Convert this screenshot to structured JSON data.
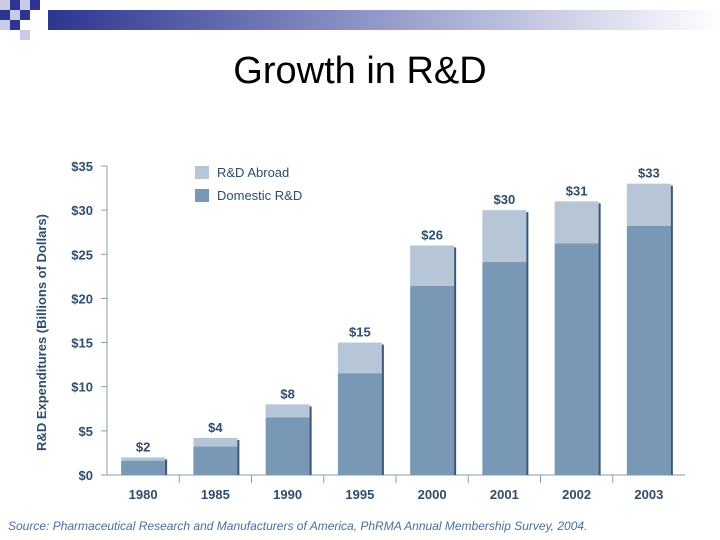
{
  "slide": {
    "title": "Growth in R&D",
    "source": "Source: Pharmaceutical Research and Manufacturers of America, PhRMA Annual Membership Survey, 2004."
  },
  "colors": {
    "abroad": "#b7c6d6",
    "domestic": "#7898b5",
    "label": "#2e4d6e",
    "deco_dark": "#2d3590",
    "deco_light": "#c7cbe6"
  },
  "chart_data": {
    "type": "bar",
    "stacked": true,
    "title": "",
    "xlabel": "",
    "ylabel": "R&D Expenditures (Billions of Dollars)",
    "ylim": [
      0,
      35
    ],
    "yticks": [
      0,
      5,
      10,
      15,
      20,
      25,
      30,
      35
    ],
    "ytick_labels": [
      "$0",
      "$5",
      "$10",
      "$15",
      "$20",
      "$25",
      "$30",
      "$35"
    ],
    "categories": [
      "1980",
      "1985",
      "1990",
      "1995",
      "2000",
      "2001",
      "2002",
      "2003"
    ],
    "series": [
      {
        "name": "Domestic R&D",
        "values": [
          1.6,
          3.2,
          6.5,
          11.5,
          21.4,
          24.1,
          26.2,
          28.2
        ]
      },
      {
        "name": "R&D Abroad",
        "values": [
          0.4,
          1.0,
          1.5,
          3.5,
          4.6,
          5.9,
          4.8,
          4.8
        ]
      }
    ],
    "totals": [
      2,
      4,
      8,
      15,
      26,
      30,
      31,
      33
    ],
    "data_labels": [
      "$2",
      "$4",
      "$8",
      "$15",
      "$26",
      "$30",
      "$31",
      "$33"
    ],
    "legend": [
      "R&D Abroad",
      "Domestic R&D"
    ],
    "legend_position": "top-left"
  }
}
